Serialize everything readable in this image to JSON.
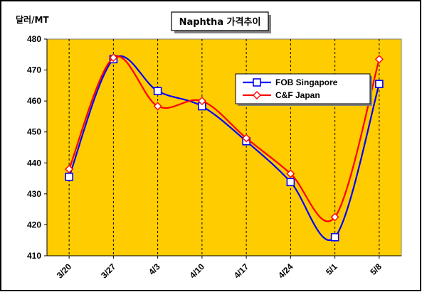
{
  "chart_data": {
    "type": "line",
    "title": "Naphtha 가격추이",
    "ylabel": "달러/MT",
    "xlabel": "",
    "categories": [
      "3/20",
      "3/27",
      "4/3",
      "4/10",
      "4/17",
      "4/24",
      "5/1",
      "5/8"
    ],
    "ylim": [
      410,
      480
    ],
    "yticks": [
      410,
      420,
      430,
      440,
      450,
      460,
      470,
      480
    ],
    "grid": "vertical dashed",
    "legend_position": "upper-right",
    "series": [
      {
        "name": "FOB Singapore",
        "values": [
          435.5,
          473.5,
          463.2,
          458.3,
          447.0,
          433.8,
          416.0,
          465.5
        ],
        "color": "#0000ff",
        "marker": "square"
      },
      {
        "name": "C&F Japan",
        "values": [
          438.0,
          474.0,
          458.3,
          460.0,
          448.0,
          436.5,
          422.5,
          473.5
        ],
        "color": "#ff0000",
        "marker": "diamond"
      }
    ],
    "plot_background": "#ffcc00",
    "frame_color": "#000000"
  }
}
